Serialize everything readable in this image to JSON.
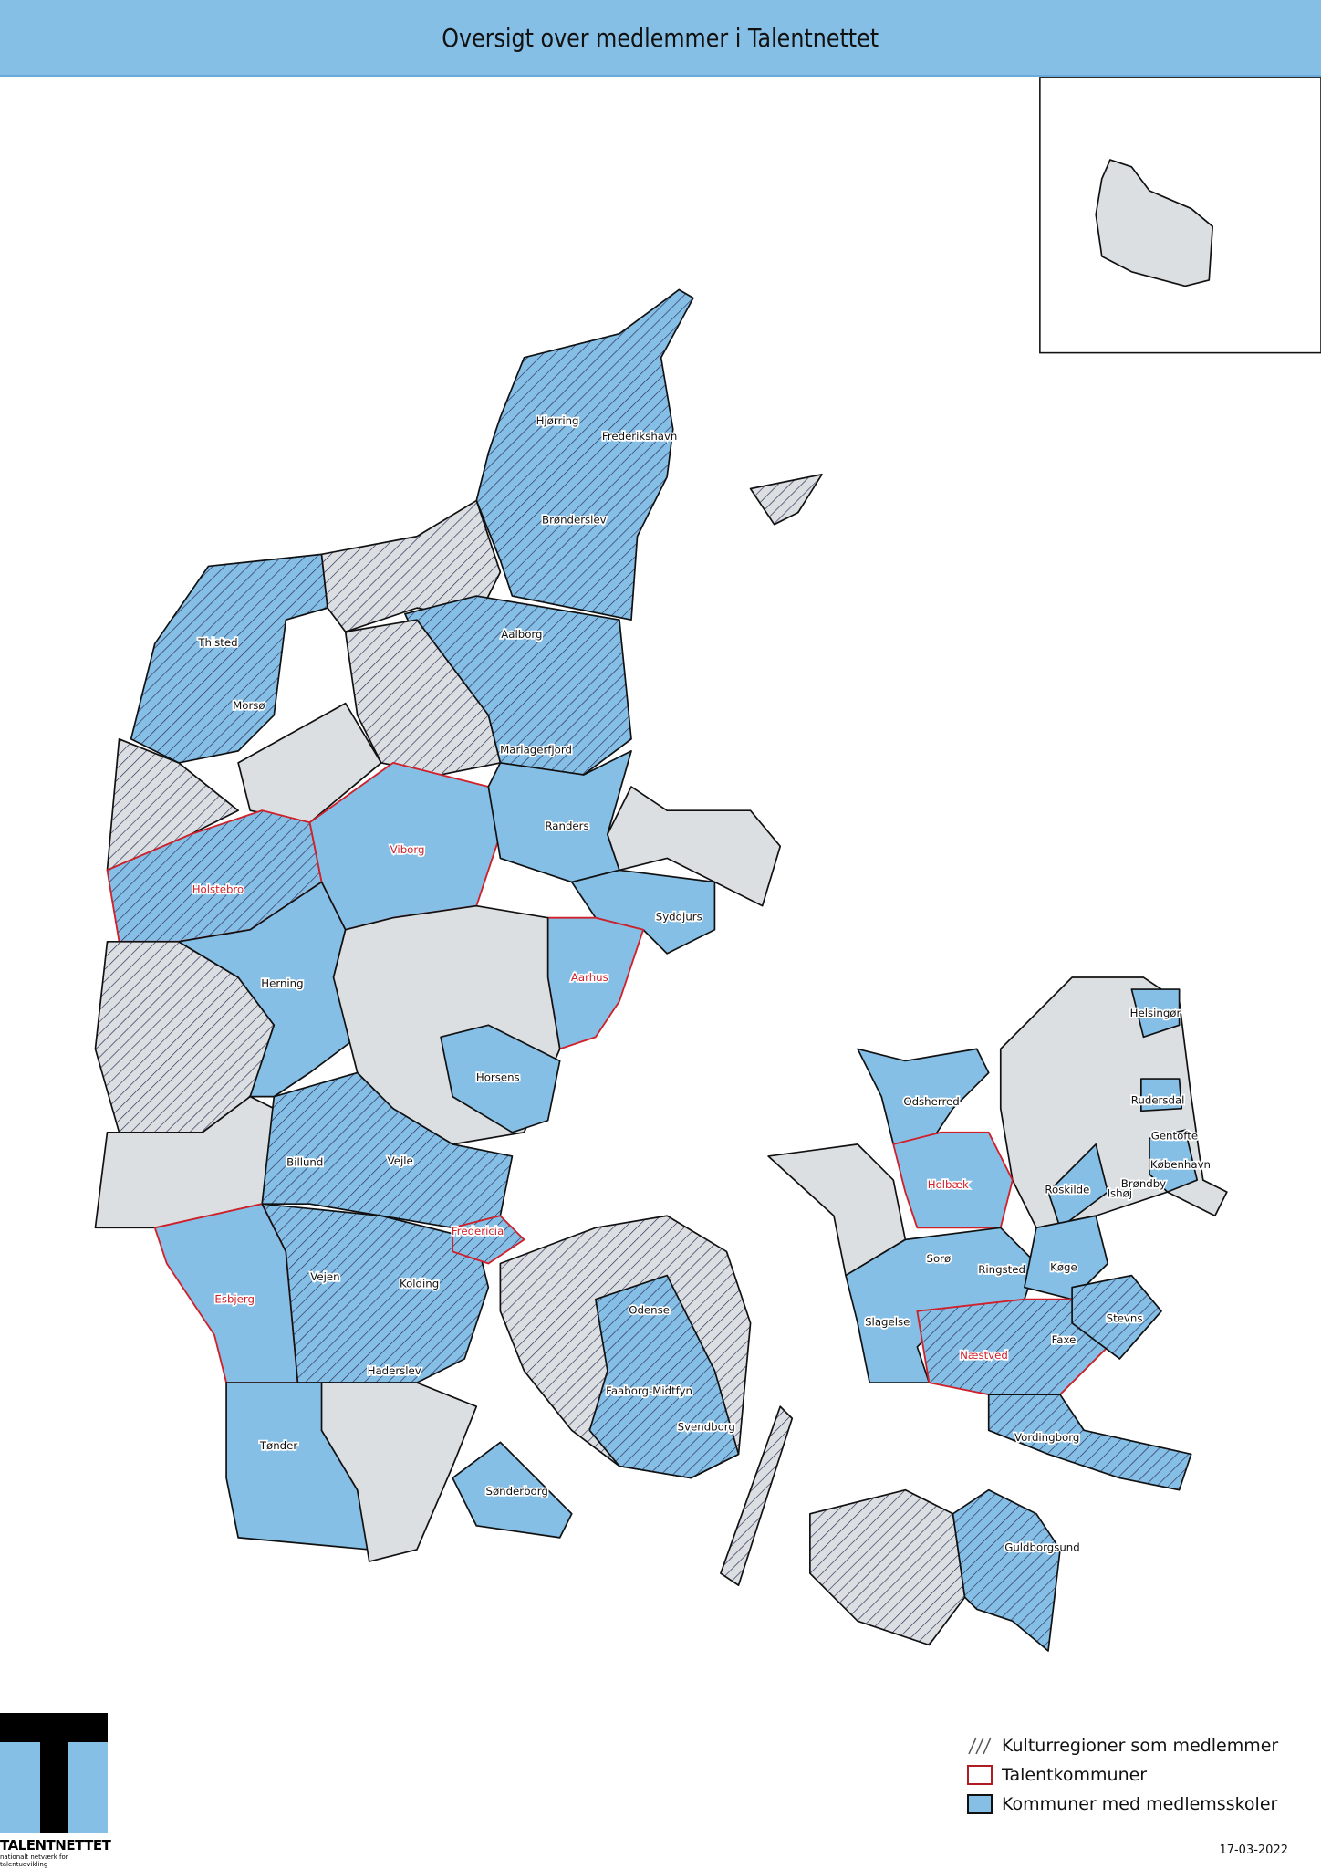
{
  "title": "Oversigt over medlemmer i Talentnettet",
  "colors": {
    "member_schools": "#85bfe6",
    "other": "#dcdfe2",
    "talent_outline": "#d0202a",
    "hatch": "#2a2a55",
    "header": "#85bfe6"
  },
  "labels": {
    "hjorring": "Hjørring",
    "frederikshavn": "Frederikshavn",
    "bronderslev": "Brønderslev",
    "thisted": "Thisted",
    "aalborg": "Aalborg",
    "morso": "Morsø",
    "mariagerfjord": "Mariagerfjord",
    "randers": "Randers",
    "viborg": "Viborg",
    "holstebro": "Holstebro",
    "syddjurs": "Syddjurs",
    "herning": "Herning",
    "aarhus": "Aarhus",
    "helsingor": "Helsingør",
    "horsens": "Horsens",
    "odsherred": "Odsherred",
    "rudersdal": "Rudersdal",
    "gentofte": "Gentofte",
    "billund": "Billund",
    "vejle": "Vejle",
    "holbaek": "Holbæk",
    "kobenhavn": "København",
    "roskilde": "Roskilde",
    "ishoj": "Ishøj",
    "brondby": "Brøndby",
    "fredericia": "Fredericia",
    "soro": "Sorø",
    "ringsted": "Ringsted",
    "koge": "Køge",
    "vejen": "Vejen",
    "kolding": "Kolding",
    "esbjerg": "Esbjerg",
    "odense": "Odense",
    "stevns": "Stevns",
    "slagelse": "Slagelse",
    "naestved": "Næstved",
    "faxe": "Faxe",
    "haderslev": "Haderslev",
    "faaborg": "Faaborg-Midtfyn",
    "svendborg": "Svendborg",
    "vordingborg": "Vordingborg",
    "tonder": "Tønder",
    "sonderborg": "Sønderborg",
    "guldborgsund": "Guldborgsund"
  },
  "legend": {
    "hatched": "Kulturregioner som medlemmer",
    "red_outline": "Talentkommuner",
    "blue": "Kommuner med medlemsskoler"
  },
  "logo": {
    "name": "TALENTNETTET",
    "tagline": "nationalt netværk for talentudvikling"
  },
  "date": "17-03-2022"
}
